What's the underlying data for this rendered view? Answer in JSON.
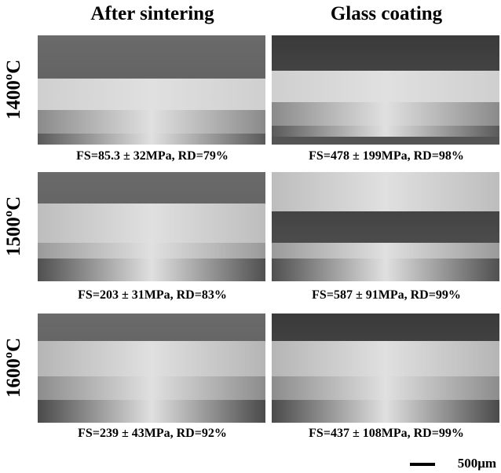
{
  "columns": [
    "After sintering",
    "Glass coating"
  ],
  "rows": [
    {
      "label": "1400ºC",
      "captions": [
        "FS=85.3 ± 32MPa, RD=79%",
        "FS=478 ± 199MPa, RD=98%"
      ]
    },
    {
      "label": "1500ºC",
      "captions": [
        "FS=203 ± 31MPa, RD=83%",
        "FS=587 ± 91MPa, RD=99%"
      ]
    },
    {
      "label": "1600ºC",
      "captions": [
        "FS=239 ± 43MPa, RD=92%",
        "FS=437 ± 108MPa, RD=99%"
      ]
    }
  ],
  "scale_bar": "500μm"
}
